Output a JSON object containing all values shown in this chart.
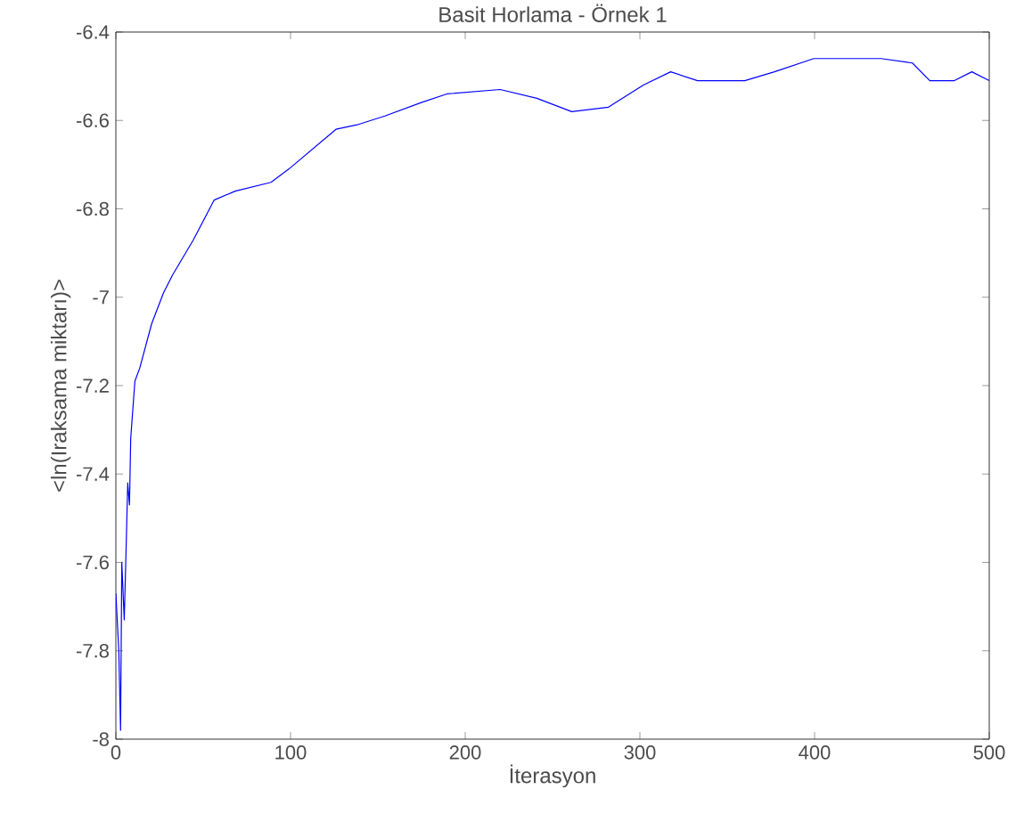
{
  "chart_data": {
    "type": "line",
    "title": "Basit Horlama - Örnek 1",
    "xlabel": "İterasyon",
    "ylabel": "<ln(Iraksama miktarı)>",
    "xlim": [
      0,
      500
    ],
    "ylim": [
      -8,
      -6.4
    ],
    "xticks": [
      0,
      100,
      200,
      300,
      400,
      500
    ],
    "yticks": [
      -8,
      -7.8,
      -7.6,
      -7.4,
      -7.2,
      -7,
      -6.8,
      -6.6,
      -6.4
    ],
    "grid": false,
    "marker": "none",
    "line_style": "solid",
    "series": [
      {
        "color": "#0000ff",
        "x": [
          0,
          1.7,
          2.7,
          3.4,
          4.8,
          5.8,
          6.8,
          7.8,
          8.5,
          10.9,
          13.7,
          20.5,
          27.3,
          32.4,
          44.4,
          56.3,
          68.3,
          88.8,
          99,
          126,
          138,
          154,
          174.5,
          189.5,
          220,
          241,
          261,
          282,
          302,
          317.6,
          333,
          360,
          377,
          399.6,
          428,
          438,
          456,
          466,
          480,
          490,
          500
        ],
        "values": [
          -7.67,
          -7.8,
          -7.98,
          -7.6,
          -7.73,
          -7.58,
          -7.42,
          -7.47,
          -7.32,
          -7.19,
          -7.16,
          -7.06,
          -6.99,
          -6.95,
          -6.87,
          -6.78,
          -6.76,
          -6.74,
          -6.71,
          -6.62,
          -6.61,
          -6.59,
          -6.56,
          -6.54,
          -6.53,
          -6.55,
          -6.58,
          -6.57,
          -6.52,
          -6.49,
          -6.51,
          -6.51,
          -6.49,
          -6.46,
          -6.46,
          -6.46,
          -6.47,
          -6.51,
          -6.51,
          -6.49,
          -6.51
        ]
      }
    ]
  }
}
